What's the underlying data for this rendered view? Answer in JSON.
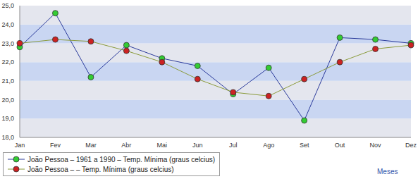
{
  "chart_data": {
    "type": "line",
    "x_label": "Meses",
    "categories": [
      "Jan",
      "Fev",
      "Mar",
      "Abr",
      "Mai",
      "Jun",
      "Jul",
      "Ago",
      "Set",
      "Out",
      "Nov",
      "Dez"
    ],
    "series": [
      {
        "name": "João Pessoa – 1961 a 1990 – Temp. Mínima (graus celcius)",
        "color": "#33cc33",
        "marker": "circle",
        "values": [
          22.8,
          24.6,
          21.2,
          22.9,
          22.2,
          21.8,
          20.3,
          21.7,
          18.9,
          23.3,
          23.2,
          23.0
        ]
      },
      {
        "name": "João Pessoa – – Temp. Mínima (graus celcius)",
        "color": "#cc2222",
        "marker": "circle",
        "values": [
          23.0,
          23.2,
          23.1,
          22.6,
          22.0,
          21.1,
          20.4,
          20.2,
          21.1,
          22.0,
          22.7,
          22.9
        ]
      }
    ],
    "ylim": [
      18,
      25
    ],
    "yticks": [
      {
        "value": 18,
        "label": "18,0"
      },
      {
        "value": 19,
        "label": "19,0"
      },
      {
        "value": 20,
        "label": "20,0"
      },
      {
        "value": 21,
        "label": "21,0"
      },
      {
        "value": 22,
        "label": "22,0"
      },
      {
        "value": 23,
        "label": "23,0"
      },
      {
        "value": 24,
        "label": "24,0"
      },
      {
        "value": 25,
        "label": "25,0"
      }
    ],
    "grid": true,
    "legend": "bottom left"
  }
}
